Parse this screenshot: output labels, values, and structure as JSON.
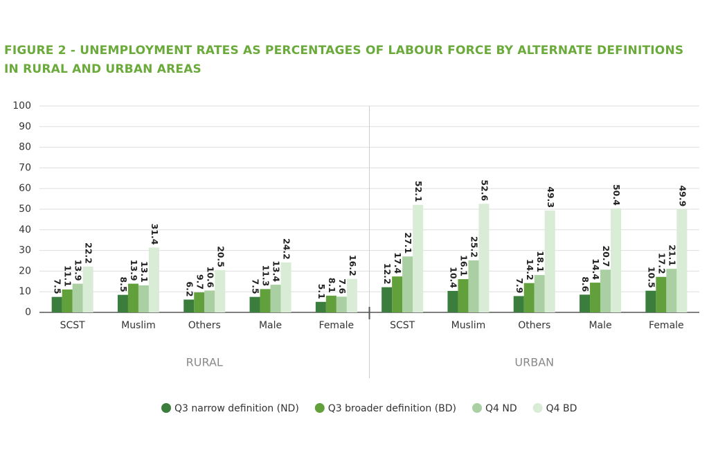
{
  "chart_data": {
    "type": "bar",
    "title": "FIGURE 2 - UNEMPLOYMENT RATES AS PERCENTAGES OF LABOUR FORCE BY ALTERNATE DEFINITIONS IN RURAL AND URBAN AREAS",
    "categories": [
      "SCST",
      "Muslim",
      "Others",
      "Male",
      "Female",
      "SCST",
      "Muslim",
      "Others",
      "Male",
      "Female"
    ],
    "groups": [
      "RURAL",
      "URBAN"
    ],
    "series": [
      {
        "name": "Q3 narrow definition (ND)",
        "color": "#3b7d3c",
        "values": [
          7.5,
          8.5,
          6.2,
          7.5,
          5.1,
          12.2,
          10.4,
          7.9,
          8.6,
          10.5
        ]
      },
      {
        "name": "Q3 broader definition (BD)",
        "color": "#62a03c",
        "values": [
          11.1,
          13.9,
          9.7,
          11.3,
          8.1,
          17.4,
          16.1,
          14.2,
          14.4,
          17.2
        ]
      },
      {
        "name": "Q4 ND",
        "color": "#a9cfa2",
        "values": [
          13.9,
          13.1,
          10.6,
          13.4,
          7.6,
          27.1,
          25.2,
          18.1,
          20.7,
          21.1
        ]
      },
      {
        "name": "Q4 BD",
        "color": "#d9ecd6",
        "values": [
          22.2,
          31.4,
          20.5,
          24.2,
          16.2,
          52.1,
          52.6,
          49.3,
          50.4,
          49.9
        ]
      }
    ],
    "ylim": [
      0,
      100
    ],
    "yticks": [
      0,
      10,
      20,
      30,
      40,
      50,
      60,
      70,
      80,
      90,
      100
    ],
    "grid": true
  }
}
